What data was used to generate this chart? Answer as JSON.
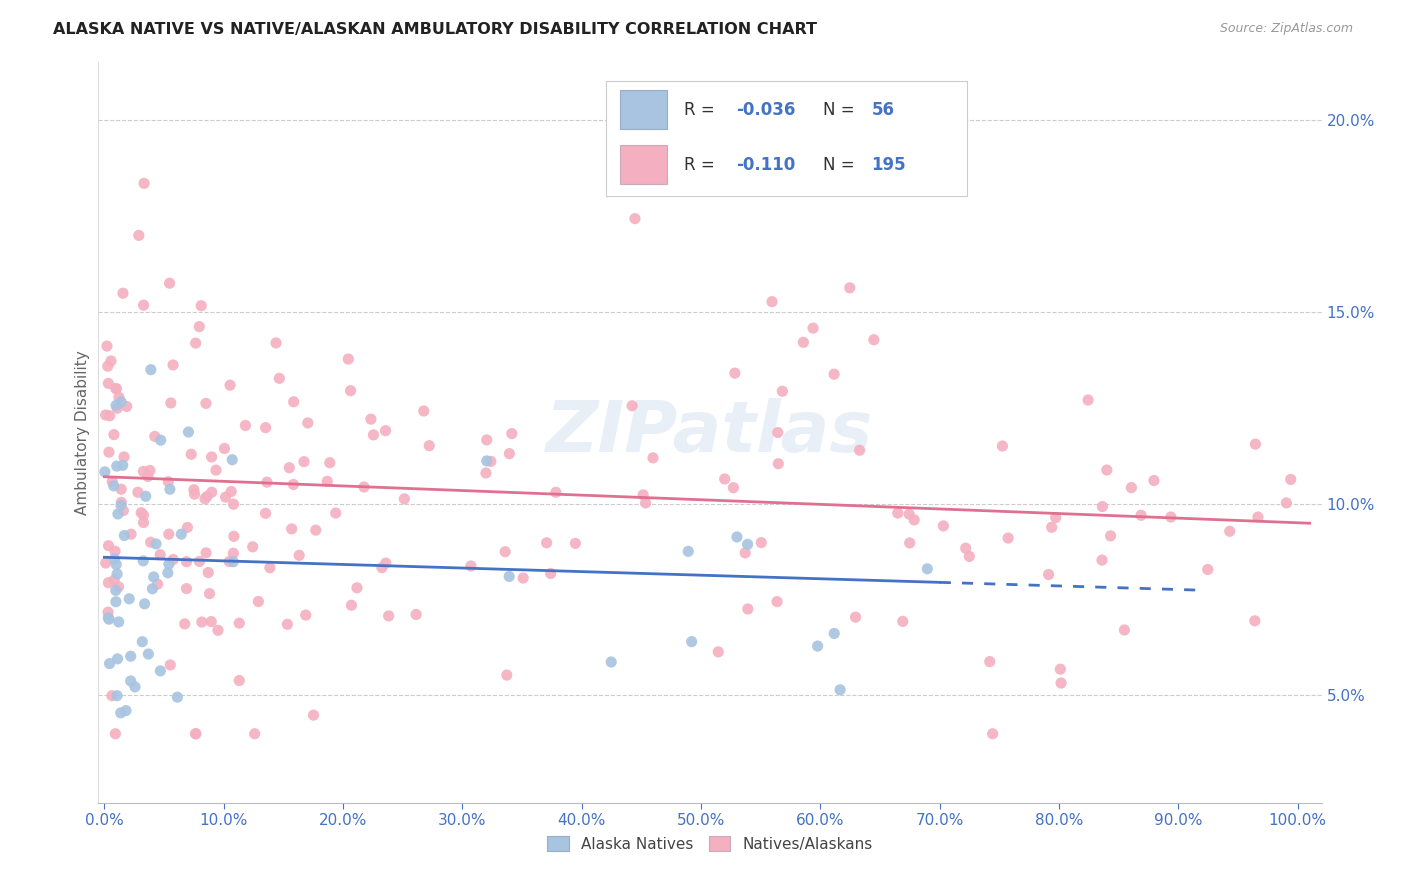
{
  "title": "ALASKA NATIVE VS NATIVE/ALASKAN AMBULATORY DISABILITY CORRELATION CHART",
  "source": "Source: ZipAtlas.com",
  "ylabel": "Ambulatory Disability",
  "legend_labels": [
    "Alaska Natives",
    "Natives/Alaskans"
  ],
  "blue_R": -0.036,
  "blue_N": 56,
  "pink_R": -0.11,
  "pink_N": 195,
  "blue_color": "#a8c4e0",
  "pink_color": "#f4afc0",
  "blue_line_color": "#4472c4",
  "pink_line_color": "#e07090",
  "background_color": "#ffffff",
  "grid_color": "#cccccc",
  "watermark": "ZIPatlas",
  "legend_R_color": "#333333",
  "legend_val_color": "#4472c4",
  "tick_color": "#4472c4",
  "ylabel_color": "#666666",
  "title_color": "#222222",
  "source_color": "#999999"
}
